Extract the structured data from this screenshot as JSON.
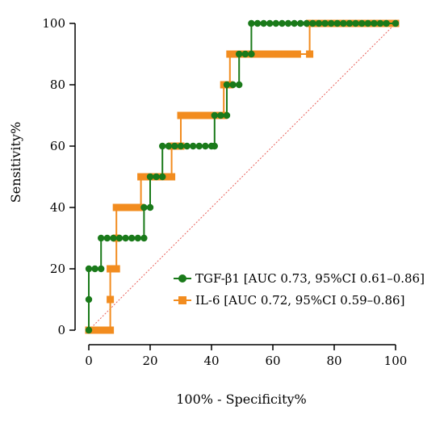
{
  "chart_data": {
    "type": "line",
    "title": "",
    "xlabel": "100% - Specificity%",
    "ylabel": "Sensitivity%",
    "xlim": [
      0,
      100
    ],
    "ylim": [
      0,
      100
    ],
    "x_ticks": [
      0,
      20,
      40,
      60,
      80,
      100
    ],
    "y_ticks": [
      0,
      20,
      40,
      60,
      80,
      100
    ],
    "x_tick_labels": [
      "0",
      "20",
      "40",
      "60",
      "80",
      "100"
    ],
    "y_tick_labels": [
      "0",
      "20",
      "40",
      "60",
      "80",
      "100"
    ],
    "grid": false,
    "legend_position": "bottom-right",
    "reference_line": {
      "from": [
        0,
        0
      ],
      "to": [
        100,
        100
      ],
      "color": "#e8605a",
      "style": "dotted"
    },
    "series": [
      {
        "name": "TGF-β1 [AUC 0.73, 95%CI 0.61–0.86]",
        "color": "#1a7a1a",
        "marker": "circle",
        "points": [
          [
            0,
            0
          ],
          [
            0,
            10
          ],
          [
            0,
            20
          ],
          [
            2,
            20
          ],
          [
            4,
            20
          ],
          [
            4,
            30
          ],
          [
            6,
            30
          ],
          [
            8,
            30
          ],
          [
            10,
            30
          ],
          [
            12,
            30
          ],
          [
            14,
            30
          ],
          [
            16,
            30
          ],
          [
            18,
            30
          ],
          [
            18,
            40
          ],
          [
            20,
            40
          ],
          [
            20,
            50
          ],
          [
            22,
            50
          ],
          [
            24,
            50
          ],
          [
            24,
            60
          ],
          [
            26,
            60
          ],
          [
            28,
            60
          ],
          [
            30,
            60
          ],
          [
            32,
            60
          ],
          [
            34,
            60
          ],
          [
            36,
            60
          ],
          [
            38,
            60
          ],
          [
            40,
            60
          ],
          [
            41,
            60
          ],
          [
            41,
            70
          ],
          [
            43,
            70
          ],
          [
            45,
            70
          ],
          [
            45,
            80
          ],
          [
            47,
            80
          ],
          [
            49,
            80
          ],
          [
            49,
            90
          ],
          [
            51,
            90
          ],
          [
            53,
            90
          ],
          [
            53,
            100
          ],
          [
            55,
            100
          ],
          [
            57,
            100
          ],
          [
            59,
            100
          ],
          [
            61,
            100
          ],
          [
            63,
            100
          ],
          [
            65,
            100
          ],
          [
            67,
            100
          ],
          [
            69,
            100
          ],
          [
            71,
            100
          ],
          [
            73,
            100
          ],
          [
            75,
            100
          ],
          [
            77,
            100
          ],
          [
            79,
            100
          ],
          [
            81,
            100
          ],
          [
            83,
            100
          ],
          [
            85,
            100
          ],
          [
            87,
            100
          ],
          [
            89,
            100
          ],
          [
            91,
            100
          ],
          [
            93,
            100
          ],
          [
            95,
            100
          ],
          [
            97,
            100
          ],
          [
            100,
            100
          ]
        ]
      },
      {
        "name": "IL-6 [AUC 0.72, 95%CI 0.59–0.86]",
        "color": "#f28c1f",
        "marker": "square",
        "points": [
          [
            0,
            0
          ],
          [
            2,
            0
          ],
          [
            4,
            0
          ],
          [
            6,
            0
          ],
          [
            7,
            0
          ],
          [
            7,
            10
          ],
          [
            7,
            20
          ],
          [
            9,
            20
          ],
          [
            9,
            30
          ],
          [
            9,
            40
          ],
          [
            11,
            40
          ],
          [
            13,
            40
          ],
          [
            15,
            40
          ],
          [
            17,
            40
          ],
          [
            17,
            50
          ],
          [
            19,
            50
          ],
          [
            21,
            50
          ],
          [
            23,
            50
          ],
          [
            25,
            50
          ],
          [
            27,
            50
          ],
          [
            27,
            60
          ],
          [
            29,
            60
          ],
          [
            30,
            60
          ],
          [
            30,
            70
          ],
          [
            32,
            70
          ],
          [
            34,
            70
          ],
          [
            36,
            70
          ],
          [
            38,
            70
          ],
          [
            40,
            70
          ],
          [
            42,
            70
          ],
          [
            44,
            70
          ],
          [
            44,
            80
          ],
          [
            46,
            80
          ],
          [
            46,
            90
          ],
          [
            48,
            90
          ],
          [
            50,
            90
          ],
          [
            52,
            90
          ],
          [
            54,
            90
          ],
          [
            56,
            90
          ],
          [
            58,
            90
          ],
          [
            60,
            90
          ],
          [
            62,
            90
          ],
          [
            64,
            90
          ],
          [
            66,
            90
          ],
          [
            68,
            90
          ],
          [
            72,
            90
          ],
          [
            72,
            100
          ],
          [
            74,
            100
          ],
          [
            76,
            100
          ],
          [
            78,
            100
          ],
          [
            80,
            100
          ],
          [
            82,
            100
          ],
          [
            84,
            100
          ],
          [
            86,
            100
          ],
          [
            88,
            100
          ],
          [
            90,
            100
          ],
          [
            92,
            100
          ],
          [
            94,
            100
          ],
          [
            96,
            100
          ],
          [
            98,
            100
          ],
          [
            100,
            100
          ]
        ]
      }
    ]
  }
}
